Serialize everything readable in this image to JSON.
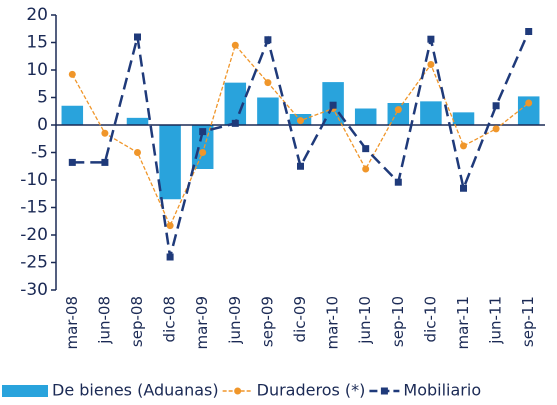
{
  "chart_data": {
    "type": "bar_line",
    "categories": [
      "mar-08",
      "jun-08",
      "sep-08",
      "dic-08",
      "mar-09",
      "jun-09",
      "sep-09",
      "dic-09",
      "mar-10",
      "jun-10",
      "sep-10",
      "dic-10",
      "mar-11",
      "jun-11",
      "sep-11"
    ],
    "series": [
      {
        "name": "De bienes (Aduanas)",
        "type": "bar",
        "color": "#29a3dc",
        "values": [
          3.5,
          0,
          1.3,
          -13.5,
          -8,
          7.7,
          5,
          2,
          7.8,
          3,
          4,
          4.3,
          2.3,
          0,
          5.2
        ]
      },
      {
        "name": "Duraderos (*)",
        "type": "line",
        "style": "thin-dashed-circle",
        "color": "#f0962a",
        "values": [
          9.2,
          -1.5,
          -5,
          -18.3,
          -5,
          14.5,
          7.7,
          0.8,
          3,
          -8,
          2.8,
          11,
          -3.8,
          -0.7,
          4
        ]
      },
      {
        "name": "Mobiliario",
        "type": "line",
        "style": "dashed-square",
        "color": "#1f3a7a",
        "values": [
          -6.8,
          -6.8,
          16,
          -24,
          -1.2,
          0.3,
          15.5,
          -7.5,
          3.6,
          -4.3,
          -10.4,
          15.6,
          -11.5,
          3.5,
          17
        ]
      }
    ],
    "ylim": [
      -30,
      20
    ],
    "yticks": [
      -30,
      -25,
      -20,
      -15,
      -10,
      -5,
      0,
      5,
      10,
      15,
      20
    ]
  }
}
